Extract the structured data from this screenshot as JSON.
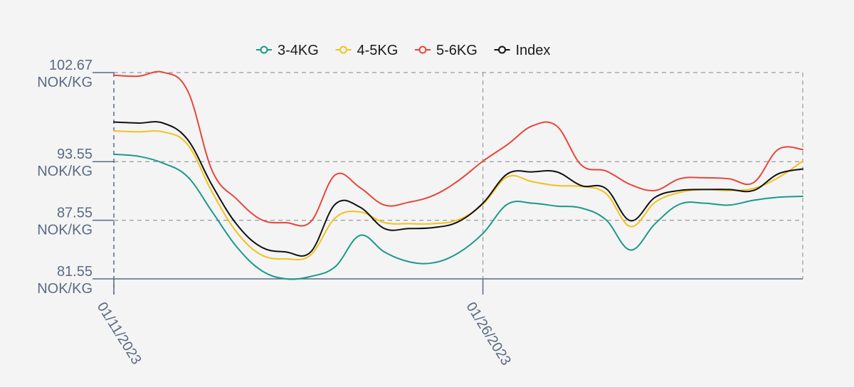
{
  "chart_data": {
    "type": "line",
    "title": "",
    "xlabel": "",
    "ylabel": "",
    "x_start": "2023-01-11",
    "x_end": "2023-02-08",
    "ylim": [
      81.55,
      102.67
    ],
    "y_ticks": [
      {
        "value": 81.55,
        "number": "81.55",
        "unit": "NOK/KG"
      },
      {
        "value": 87.55,
        "number": "87.55",
        "unit": "NOK/KG"
      },
      {
        "value": 93.55,
        "number": "93.55",
        "unit": "NOK/KG"
      },
      {
        "value": 102.67,
        "number": "102.67",
        "unit": "NOK/KG"
      }
    ],
    "x_ticks": [
      {
        "date": "2023-01-11",
        "label": "01/11/2023"
      },
      {
        "date": "2023-01-26",
        "label": "01/26/2023"
      }
    ],
    "grid": true,
    "legend_position": "top-center",
    "series": [
      {
        "name": "3-4KG",
        "color": "#1a9a88",
        "points": [
          [
            "2023-01-11",
            94.3
          ],
          [
            "2023-01-12",
            94.1
          ],
          [
            "2023-01-13",
            93.4
          ],
          [
            "2023-01-14",
            92.0
          ],
          [
            "2023-01-15",
            88.4
          ],
          [
            "2023-01-16",
            84.8
          ],
          [
            "2023-01-17",
            82.4
          ],
          [
            "2023-01-18",
            81.55
          ],
          [
            "2023-01-19",
            81.8
          ],
          [
            "2023-01-20",
            82.8
          ],
          [
            "2023-01-21",
            86.0
          ],
          [
            "2023-01-22",
            84.3
          ],
          [
            "2023-01-23",
            83.3
          ],
          [
            "2023-01-24",
            83.2
          ],
          [
            "2023-01-25",
            84.2
          ],
          [
            "2023-01-26",
            86.2
          ],
          [
            "2023-01-27",
            89.2
          ],
          [
            "2023-01-28",
            89.3
          ],
          [
            "2023-01-29",
            89.0
          ],
          [
            "2023-01-30",
            88.8
          ],
          [
            "2023-01-31",
            87.6
          ],
          [
            "2023-02-01",
            84.5
          ],
          [
            "2023-02-02",
            87.2
          ],
          [
            "2023-02-03",
            89.2
          ],
          [
            "2023-02-04",
            89.3
          ],
          [
            "2023-02-05",
            89.1
          ],
          [
            "2023-02-06",
            89.6
          ],
          [
            "2023-02-07",
            89.9
          ],
          [
            "2023-02-08",
            90.0
          ]
        ]
      },
      {
        "name": "4-5KG",
        "color": "#f2c21b",
        "points": [
          [
            "2023-01-11",
            96.7
          ],
          [
            "2023-01-12",
            96.6
          ],
          [
            "2023-01-13",
            96.6
          ],
          [
            "2023-01-14",
            95.3
          ],
          [
            "2023-01-15",
            90.4
          ],
          [
            "2023-01-16",
            86.3
          ],
          [
            "2023-01-17",
            84.0
          ],
          [
            "2023-01-18",
            83.6
          ],
          [
            "2023-01-19",
            84.0
          ],
          [
            "2023-01-20",
            87.8
          ],
          [
            "2023-01-21",
            88.4
          ],
          [
            "2023-01-22",
            87.3
          ],
          [
            "2023-01-23",
            87.2
          ],
          [
            "2023-01-24",
            87.2
          ],
          [
            "2023-01-25",
            87.6
          ],
          [
            "2023-01-26",
            89.2
          ],
          [
            "2023-01-27",
            92.0
          ],
          [
            "2023-01-28",
            91.5
          ],
          [
            "2023-01-29",
            91.1
          ],
          [
            "2023-01-30",
            91.0
          ],
          [
            "2023-01-31",
            90.3
          ],
          [
            "2023-02-01",
            86.9
          ],
          [
            "2023-02-02",
            89.4
          ],
          [
            "2023-02-03",
            90.4
          ],
          [
            "2023-02-04",
            90.7
          ],
          [
            "2023-02-05",
            90.6
          ],
          [
            "2023-02-06",
            90.8
          ],
          [
            "2023-02-07",
            91.9
          ],
          [
            "2023-02-08",
            93.6
          ]
        ]
      },
      {
        "name": "5-6KG",
        "color": "#e8453c",
        "points": [
          [
            "2023-01-11",
            102.4
          ],
          [
            "2023-01-12",
            102.3
          ],
          [
            "2023-01-13",
            102.7
          ],
          [
            "2023-01-14",
            100.8
          ],
          [
            "2023-01-15",
            92.6
          ],
          [
            "2023-01-16",
            89.7
          ],
          [
            "2023-01-17",
            87.6
          ],
          [
            "2023-01-18",
            87.3
          ],
          [
            "2023-01-19",
            87.4
          ],
          [
            "2023-01-20",
            92.2
          ],
          [
            "2023-01-21",
            90.9
          ],
          [
            "2023-01-22",
            89.1
          ],
          [
            "2023-01-23",
            89.4
          ],
          [
            "2023-01-24",
            90.1
          ],
          [
            "2023-01-25",
            91.6
          ],
          [
            "2023-01-26",
            93.6
          ],
          [
            "2023-01-27",
            95.3
          ],
          [
            "2023-01-28",
            97.2
          ],
          [
            "2023-01-29",
            97.2
          ],
          [
            "2023-01-30",
            93.2
          ],
          [
            "2023-01-31",
            92.6
          ],
          [
            "2023-02-01",
            91.2
          ],
          [
            "2023-02-02",
            90.6
          ],
          [
            "2023-02-03",
            91.8
          ],
          [
            "2023-02-04",
            91.9
          ],
          [
            "2023-02-05",
            91.8
          ],
          [
            "2023-02-06",
            91.4
          ],
          [
            "2023-02-07",
            94.8
          ],
          [
            "2023-02-08",
            94.8
          ]
        ]
      },
      {
        "name": "Index",
        "color": "#111111",
        "points": [
          [
            "2023-01-11",
            97.6
          ],
          [
            "2023-01-12",
            97.5
          ],
          [
            "2023-01-13",
            97.5
          ],
          [
            "2023-01-14",
            95.8
          ],
          [
            "2023-01-15",
            91.1
          ],
          [
            "2023-01-16",
            87.1
          ],
          [
            "2023-01-17",
            84.8
          ],
          [
            "2023-01-18",
            84.3
          ],
          [
            "2023-01-19",
            84.3
          ],
          [
            "2023-01-20",
            89.2
          ],
          [
            "2023-01-21",
            88.9
          ],
          [
            "2023-01-22",
            86.7
          ],
          [
            "2023-01-23",
            86.7
          ],
          [
            "2023-01-24",
            86.8
          ],
          [
            "2023-01-25",
            87.4
          ],
          [
            "2023-01-26",
            89.3
          ],
          [
            "2023-01-27",
            92.3
          ],
          [
            "2023-01-28",
            92.5
          ],
          [
            "2023-01-29",
            92.5
          ],
          [
            "2023-01-30",
            91.1
          ],
          [
            "2023-01-31",
            90.8
          ],
          [
            "2023-02-01",
            87.5
          ],
          [
            "2023-02-02",
            89.9
          ],
          [
            "2023-02-03",
            90.6
          ],
          [
            "2023-02-04",
            90.7
          ],
          [
            "2023-02-05",
            90.7
          ],
          [
            "2023-02-06",
            90.6
          ],
          [
            "2023-02-07",
            92.3
          ],
          [
            "2023-02-08",
            92.8
          ]
        ]
      }
    ]
  }
}
